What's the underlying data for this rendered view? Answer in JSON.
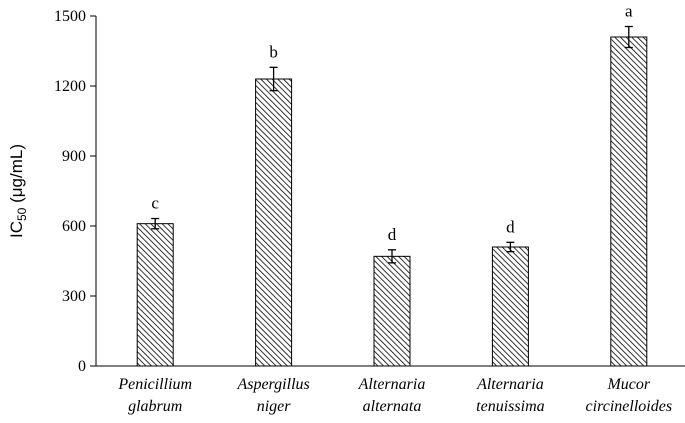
{
  "chart_data": {
    "type": "bar",
    "categories": [
      [
        "Penicillium",
        "glabrum"
      ],
      [
        "Aspergillus",
        "niger"
      ],
      [
        "Alternaria",
        "alternata"
      ],
      [
        "Alternaria",
        "tenuissima"
      ],
      [
        "Mucor",
        "circinelloides"
      ]
    ],
    "values": [
      610,
      1230,
      470,
      510,
      1410
    ],
    "errors": [
      22,
      50,
      28,
      20,
      45
    ],
    "significance_letters": [
      "c",
      "b",
      "d",
      "d",
      "a"
    ],
    "title": "",
    "xlabel": "",
    "ylabel": {
      "prefix": "IC",
      "subscript": "50",
      "suffix": " (μg/mL)"
    },
    "ylim": [
      0,
      1500
    ],
    "yticks": [
      0,
      300,
      600,
      900,
      1200,
      1500
    ],
    "grid": false,
    "legend": "none",
    "bar_fill": "diagonal hatch",
    "colors": {
      "bar_fill": "#ffffff",
      "hatch": "#000000",
      "axis": "#000000"
    }
  }
}
